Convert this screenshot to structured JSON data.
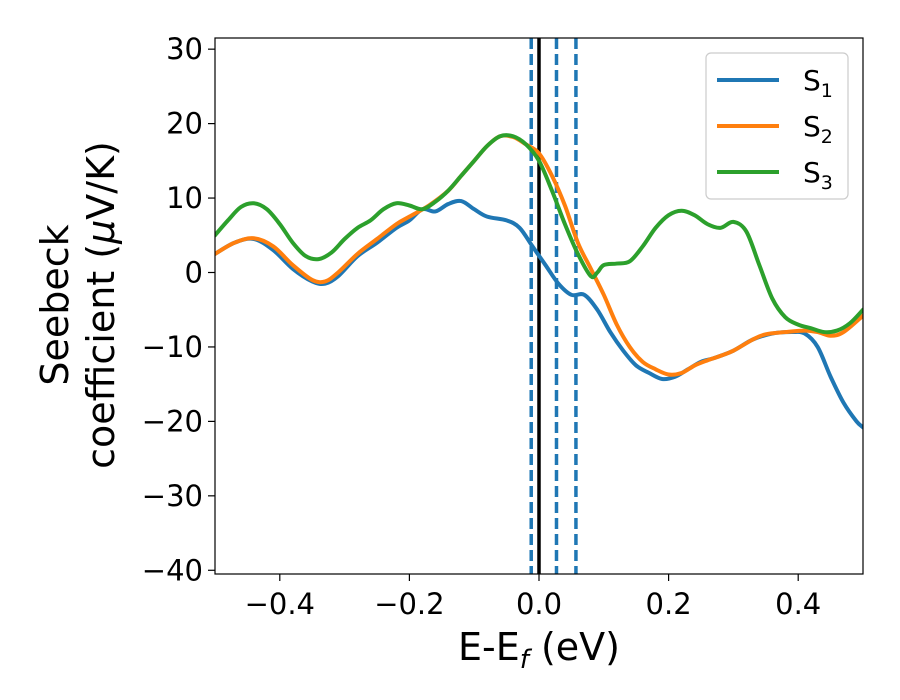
{
  "chart_data": {
    "type": "line",
    "xlabel": {
      "main": "E-E",
      "sub": "f",
      "suffix": " (eV)"
    },
    "ylabel": {
      "line1": "Seebeck",
      "line2": "coefficient  (",
      "mu": "μ",
      "line2_suffix": "V/K)"
    },
    "xlim": [
      -0.5,
      0.5
    ],
    "ylim": [
      -40.5,
      31.5
    ],
    "xticks": [
      -0.4,
      -0.2,
      0.0,
      0.2,
      0.4
    ],
    "xtick_labels": [
      "−0.4",
      "−0.2",
      "0.0",
      "0.2",
      "0.4"
    ],
    "yticks": [
      -40,
      -30,
      -20,
      -10,
      0,
      10,
      20,
      30
    ],
    "ytick_labels": [
      "−40",
      "−30",
      "−20",
      "−10",
      "0",
      "10",
      "20",
      "30"
    ],
    "grid": false,
    "legend_position": "top-right",
    "vlines": [
      {
        "x": 0.0,
        "style": "solid",
        "color": "#000000"
      },
      {
        "x": -0.012,
        "style": "dashed",
        "color": "#1f77b4"
      },
      {
        "x": 0.027,
        "style": "dashed",
        "color": "#1f77b4"
      },
      {
        "x": 0.057,
        "style": "dashed",
        "color": "#1f77b4"
      }
    ],
    "series": [
      {
        "name": "S",
        "sub": "1",
        "color": "#1f77b4",
        "points": [
          [
            -0.5,
            2.5
          ],
          [
            -0.47,
            4
          ],
          [
            -0.44,
            4.5
          ],
          [
            -0.41,
            3
          ],
          [
            -0.38,
            0.5
          ],
          [
            -0.35,
            -1.2
          ],
          [
            -0.33,
            -1.5
          ],
          [
            -0.31,
            -0.5
          ],
          [
            -0.28,
            2.2
          ],
          [
            -0.25,
            4
          ],
          [
            -0.22,
            6
          ],
          [
            -0.2,
            7
          ],
          [
            -0.18,
            8.5
          ],
          [
            -0.16,
            8.2
          ],
          [
            -0.14,
            9.2
          ],
          [
            -0.12,
            9.6
          ],
          [
            -0.1,
            8.5
          ],
          [
            -0.08,
            7.5
          ],
          [
            -0.05,
            7
          ],
          [
            -0.03,
            6
          ],
          [
            -0.01,
            3.5
          ],
          [
            0.01,
            1
          ],
          [
            0.03,
            -1.5
          ],
          [
            0.05,
            -3
          ],
          [
            0.07,
            -3
          ],
          [
            0.09,
            -5
          ],
          [
            0.11,
            -8
          ],
          [
            0.13,
            -10.5
          ],
          [
            0.15,
            -12.5
          ],
          [
            0.17,
            -13.5
          ],
          [
            0.19,
            -14.3
          ],
          [
            0.21,
            -14
          ],
          [
            0.23,
            -13
          ],
          [
            0.25,
            -12
          ],
          [
            0.27,
            -11.5
          ],
          [
            0.3,
            -10.5
          ],
          [
            0.33,
            -9
          ],
          [
            0.36,
            -8.2
          ],
          [
            0.39,
            -8
          ],
          [
            0.41,
            -8.2
          ],
          [
            0.43,
            -10
          ],
          [
            0.45,
            -14
          ],
          [
            0.47,
            -17.5
          ],
          [
            0.49,
            -20
          ],
          [
            0.5,
            -20.8
          ]
        ]
      },
      {
        "name": "S",
        "sub": "2",
        "color": "#ff7f0e",
        "points": [
          [
            -0.5,
            2.5
          ],
          [
            -0.47,
            4
          ],
          [
            -0.44,
            4.6
          ],
          [
            -0.41,
            3.5
          ],
          [
            -0.38,
            1
          ],
          [
            -0.35,
            -1
          ],
          [
            -0.33,
            -1.2
          ],
          [
            -0.31,
            0
          ],
          [
            -0.28,
            2.5
          ],
          [
            -0.25,
            4.5
          ],
          [
            -0.22,
            6.5
          ],
          [
            -0.2,
            7.5
          ],
          [
            -0.17,
            9
          ],
          [
            -0.14,
            11
          ],
          [
            -0.12,
            13
          ],
          [
            -0.1,
            15
          ],
          [
            -0.08,
            17
          ],
          [
            -0.06,
            18.3
          ],
          [
            -0.04,
            18.2
          ],
          [
            -0.02,
            17.2
          ],
          [
            0.0,
            16
          ],
          [
            0.02,
            13
          ],
          [
            0.04,
            9
          ],
          [
            0.06,
            4
          ],
          [
            0.08,
            0.5
          ],
          [
            0.1,
            -3
          ],
          [
            0.12,
            -7
          ],
          [
            0.14,
            -10
          ],
          [
            0.16,
            -12
          ],
          [
            0.18,
            -13
          ],
          [
            0.2,
            -13.7
          ],
          [
            0.22,
            -13.5
          ],
          [
            0.24,
            -12.5
          ],
          [
            0.26,
            -11.8
          ],
          [
            0.28,
            -11.2
          ],
          [
            0.3,
            -10.5
          ],
          [
            0.33,
            -9
          ],
          [
            0.35,
            -8.3
          ],
          [
            0.38,
            -8
          ],
          [
            0.41,
            -7.8
          ],
          [
            0.43,
            -8
          ],
          [
            0.45,
            -8.5
          ],
          [
            0.47,
            -8
          ],
          [
            0.5,
            -5.8
          ]
        ]
      },
      {
        "name": "S",
        "sub": "3",
        "color": "#2ca02c",
        "points": [
          [
            -0.5,
            5
          ],
          [
            -0.48,
            7
          ],
          [
            -0.46,
            8.8
          ],
          [
            -0.44,
            9.3
          ],
          [
            -0.42,
            8.5
          ],
          [
            -0.4,
            6.5
          ],
          [
            -0.38,
            4
          ],
          [
            -0.36,
            2.2
          ],
          [
            -0.34,
            1.8
          ],
          [
            -0.32,
            2.7
          ],
          [
            -0.3,
            4.5
          ],
          [
            -0.28,
            6
          ],
          [
            -0.26,
            7
          ],
          [
            -0.24,
            8.5
          ],
          [
            -0.22,
            9.3
          ],
          [
            -0.2,
            9
          ],
          [
            -0.18,
            8.5
          ],
          [
            -0.16,
            9.5
          ],
          [
            -0.14,
            11
          ],
          [
            -0.12,
            13
          ],
          [
            -0.1,
            15
          ],
          [
            -0.08,
            17
          ],
          [
            -0.06,
            18.3
          ],
          [
            -0.04,
            18.3
          ],
          [
            -0.02,
            17.2
          ],
          [
            0.0,
            15
          ],
          [
            0.02,
            11
          ],
          [
            0.04,
            6.5
          ],
          [
            0.06,
            2.5
          ],
          [
            0.08,
            -0.5
          ],
          [
            0.09,
            0
          ],
          [
            0.1,
            1
          ],
          [
            0.12,
            1.2
          ],
          [
            0.14,
            1.5
          ],
          [
            0.16,
            3.5
          ],
          [
            0.18,
            6
          ],
          [
            0.2,
            7.7
          ],
          [
            0.22,
            8.3
          ],
          [
            0.24,
            7.7
          ],
          [
            0.26,
            6.5
          ],
          [
            0.28,
            6
          ],
          [
            0.3,
            6.8
          ],
          [
            0.32,
            5.5
          ],
          [
            0.34,
            1
          ],
          [
            0.36,
            -3.5
          ],
          [
            0.38,
            -6
          ],
          [
            0.4,
            -7
          ],
          [
            0.42,
            -7.5
          ],
          [
            0.44,
            -8
          ],
          [
            0.46,
            -7.8
          ],
          [
            0.48,
            -6.8
          ],
          [
            0.5,
            -5
          ]
        ]
      }
    ]
  }
}
